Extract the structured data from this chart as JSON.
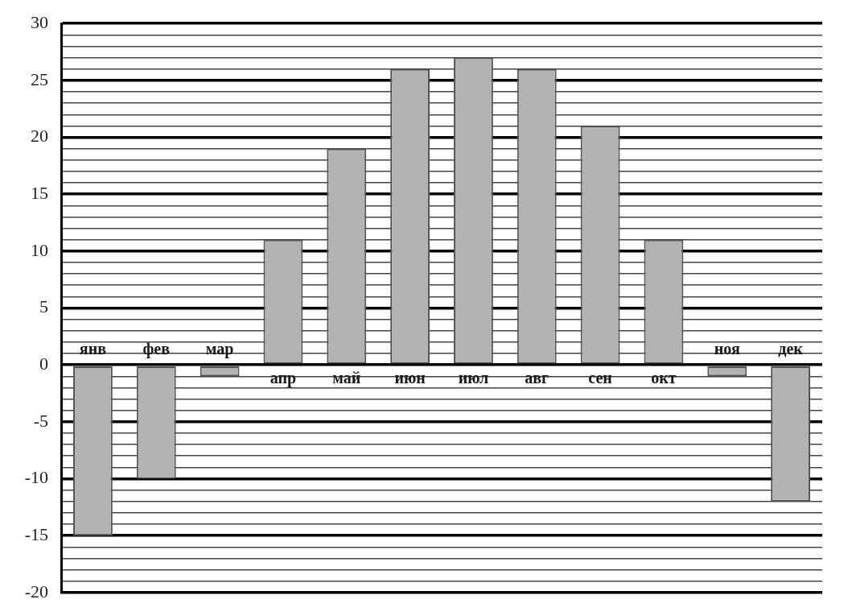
{
  "chart_data": {
    "type": "bar",
    "categories": [
      "янв",
      "фев",
      "мар",
      "апр",
      "май",
      "июн",
      "июл",
      "авг",
      "сен",
      "окт",
      "ноя",
      "дек"
    ],
    "values": [
      -15,
      -10,
      -1,
      11,
      19,
      26,
      27,
      26,
      21,
      11,
      -1,
      -12
    ],
    "color": "#b3b3b3",
    "ylim": [
      -20,
      30
    ],
    "yticks": [
      -20,
      {
        "value": -19,
        "label": null
      },
      {
        "value": -18,
        "label": null
      },
      {
        "value": -17,
        "label": null
      },
      {
        "value": -16,
        "label": null
      },
      -15,
      {
        "value": -14,
        "label": null
      },
      {
        "value": -13,
        "label": null
      },
      {
        "value": -12,
        "label": null
      },
      {
        "value": -11,
        "label": null
      },
      -10,
      {
        "value": -9,
        "label": null
      },
      {
        "value": -8,
        "label": null
      },
      {
        "value": -7,
        "label": null
      },
      {
        "value": -6,
        "label": null
      },
      -5,
      {
        "value": -4,
        "label": null
      },
      {
        "value": -3,
        "label": null
      },
      {
        "value": -2,
        "label": null
      },
      {
        "value": -1,
        "label": null
      },
      0,
      {
        "value": 1,
        "label": null
      },
      {
        "value": 2,
        "label": null
      },
      {
        "value": 3,
        "label": null
      },
      {
        "value": 4,
        "label": null
      },
      5,
      {
        "value": 6,
        "label": null
      },
      {
        "value": 7,
        "label": null
      },
      {
        "value": 8,
        "label": null
      },
      {
        "value": 9,
        "label": null
      },
      10,
      {
        "value": 11,
        "label": null
      },
      {
        "value": 12,
        "label": null
      },
      {
        "value": 13,
        "label": null
      },
      {
        "value": 14,
        "label": null
      },
      15,
      {
        "value": 16,
        "label": null
      },
      {
        "value": 17,
        "label": null
      },
      {
        "value": 18,
        "label": null
      },
      {
        "value": 19,
        "label": null
      },
      20,
      {
        "value": 21,
        "label": null
      },
      {
        "value": 22,
        "label": null
      },
      {
        "value": 23,
        "label": null
      },
      {
        "value": 24,
        "label": null
      },
      25,
      {
        "value": 26,
        "label": null
      },
      {
        "value": 27,
        "label": null
      },
      {
        "value": 28,
        "label": null
      },
      {
        "value": 29,
        "label": null
      },
      30
    ],
    "grid": "y"
  }
}
